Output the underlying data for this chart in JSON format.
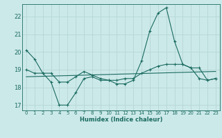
{
  "xlabel": "Humidex (Indice chaleur)",
  "bg_color": "#cce9e9",
  "grid_color": "#b8d8d8",
  "line_color": "#1a6b60",
  "xlim": [
    -0.5,
    23.5
  ],
  "ylim": [
    16.7,
    22.7
  ],
  "yticks": [
    17,
    18,
    19,
    20,
    21,
    22
  ],
  "xticks": [
    0,
    1,
    2,
    3,
    4,
    5,
    6,
    7,
    8,
    9,
    10,
    11,
    12,
    13,
    14,
    15,
    16,
    17,
    18,
    19,
    20,
    21,
    22,
    23
  ],
  "series1_x": [
    0,
    1,
    2,
    3,
    4,
    5,
    6,
    7,
    8,
    9,
    10,
    11,
    12,
    13,
    14,
    15,
    16,
    17,
    18,
    19,
    20,
    21,
    22,
    23
  ],
  "series1_y": [
    20.1,
    19.6,
    18.8,
    18.3,
    17.0,
    17.0,
    17.7,
    18.5,
    18.6,
    18.4,
    18.4,
    18.2,
    18.2,
    18.4,
    19.5,
    21.2,
    22.2,
    22.5,
    20.6,
    19.3,
    19.1,
    19.1,
    18.4,
    18.5
  ],
  "series2_x": [
    0,
    1,
    2,
    3,
    4,
    5,
    6,
    7,
    8,
    9,
    10,
    11,
    12,
    13,
    14,
    15,
    16,
    17,
    18,
    19,
    20,
    21,
    22,
    23
  ],
  "series2_y": [
    19.0,
    18.8,
    18.8,
    18.8,
    18.3,
    18.3,
    18.6,
    18.9,
    18.7,
    18.5,
    18.4,
    18.4,
    18.5,
    18.5,
    18.8,
    19.0,
    19.2,
    19.3,
    19.3,
    19.3,
    19.1,
    18.5,
    18.4,
    18.5
  ],
  "series3_x": [
    0,
    23
  ],
  "series3_y": [
    18.6,
    18.9
  ]
}
